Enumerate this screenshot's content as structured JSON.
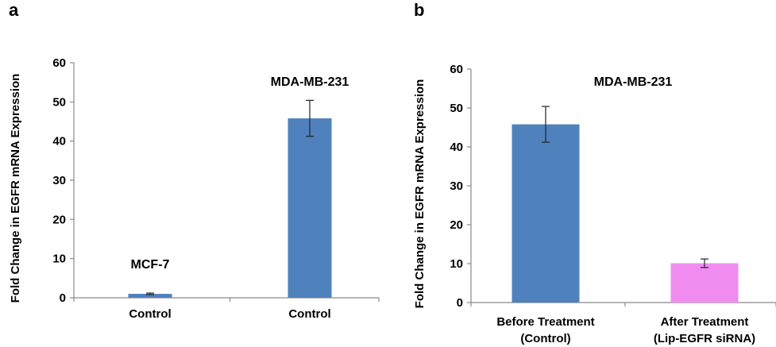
{
  "chart_data": [
    {
      "panel": "a",
      "type": "bar",
      "ylabel": "Fold Change in EGFR mRNA Expression",
      "ylim": [
        0,
        60
      ],
      "yticks": [
        0,
        10,
        20,
        30,
        40,
        50,
        60
      ],
      "categories": [
        [
          "Control"
        ],
        [
          "Control"
        ]
      ],
      "values": [
        1,
        45.8
      ],
      "errors": [
        0.2,
        4.6
      ],
      "annotations": [
        "MCF-7",
        "MDA-MB-231"
      ],
      "colors": [
        "#4f81bd",
        "#4f81bd"
      ],
      "grid": false
    },
    {
      "panel": "b",
      "type": "bar",
      "ylabel": "Fold Change in EGFR mRNA Expression",
      "ylim": [
        0,
        60
      ],
      "yticks": [
        0,
        10,
        20,
        30,
        40,
        50,
        60
      ],
      "categories": [
        [
          "Before Treatment",
          "(Control)"
        ],
        [
          "After Treatment",
          "(Lip-EGFR siRNA)"
        ]
      ],
      "values": [
        45.8,
        10.1
      ],
      "errors": [
        4.6,
        1.1
      ],
      "annotations": [
        "MDA-MB-231"
      ],
      "colors": [
        "#4f81bd",
        "#f08cf0"
      ],
      "grid": false
    }
  ]
}
